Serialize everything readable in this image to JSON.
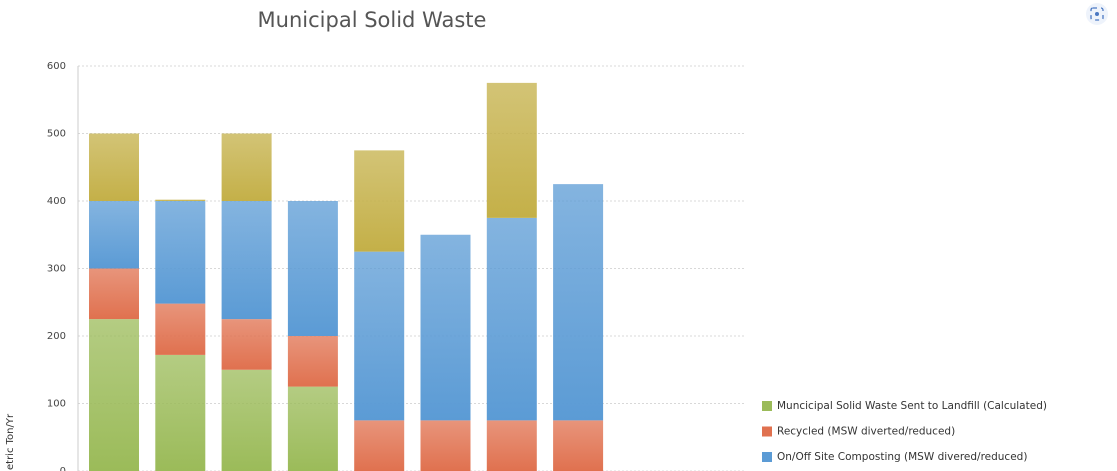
{
  "chart_data": {
    "type": "bar",
    "stacked": true,
    "title": "Municipal Solid Waste",
    "y_label": "etric Ton/Yr",
    "categories": [
      null,
      null,
      null,
      null,
      null,
      null,
      null,
      null
    ],
    "series": [
      {
        "name": "Muncicipal Solid Waste Sent to Landfill (Calculated)",
        "color": "#9bbb59",
        "values": [
          225,
          172,
          150,
          125,
          0,
          0,
          0,
          0
        ]
      },
      {
        "name": "Recycled (MSW diverted/reduced)",
        "color": "#e0714f",
        "values": [
          75,
          76,
          75,
          75,
          75,
          75,
          75,
          75
        ]
      },
      {
        "name": "On/Off Site Composting (MSW divered/reduced)",
        "color": "#5b9bd5",
        "values": [
          100,
          152,
          175,
          200,
          250,
          275,
          300,
          350
        ]
      },
      {
        "color": "#c4b048",
        "values": [
          100,
          2,
          100,
          0,
          150,
          0,
          200,
          0
        ]
      }
    ],
    "ylim": [
      0,
      600
    ],
    "yticks": [
      0,
      100,
      200,
      300,
      400,
      500,
      600
    ],
    "grid": true
  }
}
